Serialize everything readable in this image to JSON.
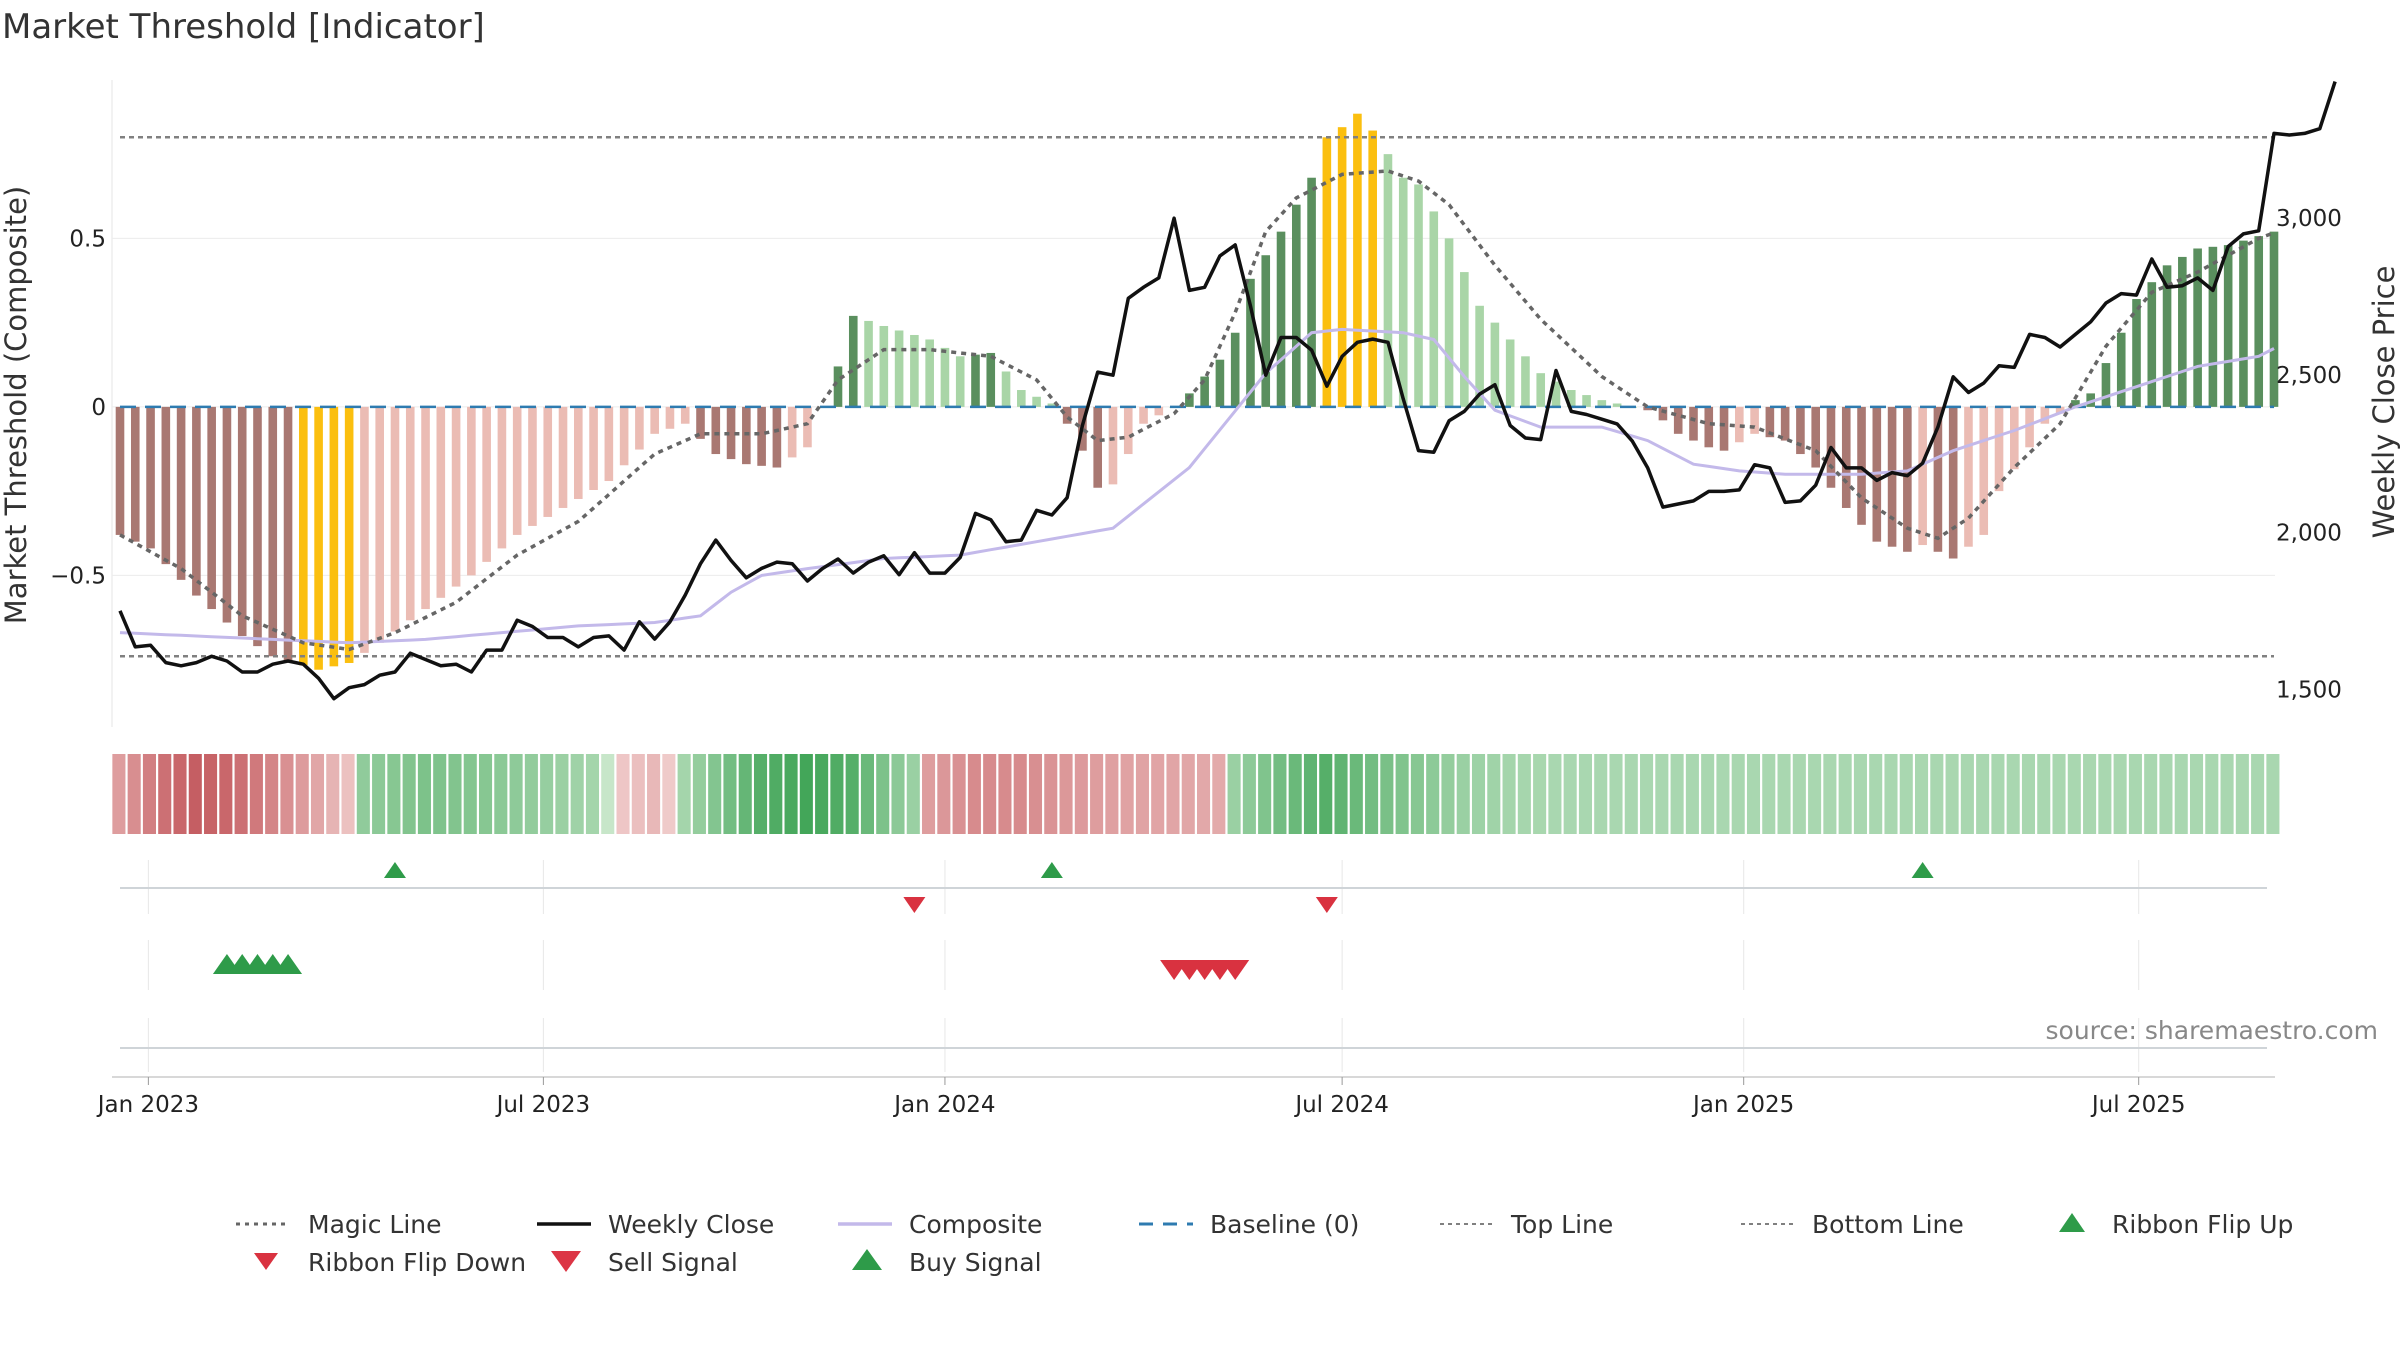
{
  "chart_data": {
    "type": "bar",
    "title": "Market Threshold [Indicator]",
    "ylabel": "Market Threshold (Composite)",
    "y2label": "Weekly Close Price",
    "source": "source: sharemaestro.com",
    "ylim": [
      -0.95,
      0.97
    ],
    "y2lim": [
      1380,
      3440
    ],
    "yticks": [
      {
        "value": 0.5,
        "label": "0.5"
      },
      {
        "value": 0,
        "label": "0"
      },
      {
        "value": -0.5,
        "label": "−0.5"
      }
    ],
    "y2ticks": [
      {
        "value": 3000,
        "label": "3,000"
      },
      {
        "value": 2500,
        "label": "2,500"
      },
      {
        "value": 2000,
        "label": "2,000"
      },
      {
        "value": 1500,
        "label": "1,500"
      }
    ],
    "start_date": "2022-12-19",
    "end_date": "2025-09-01",
    "xticks": [
      {
        "date": "2023-01-01",
        "label": "Jan 2023"
      },
      {
        "date": "2023-07-01",
        "label": "Jul 2023"
      },
      {
        "date": "2024-01-01",
        "label": "Jan 2024"
      },
      {
        "date": "2024-07-01",
        "label": "Jul 2024"
      },
      {
        "date": "2025-01-01",
        "label": "Jan 2025"
      },
      {
        "date": "2025-07-01",
        "label": "Jul 2025"
      }
    ],
    "top_line": 0.8,
    "bottom_line": -0.74,
    "composite_keyframes": [
      [
        0,
        -0.38
      ],
      [
        2,
        -0.42
      ],
      [
        5,
        -0.56
      ],
      [
        8,
        -0.68
      ],
      [
        10,
        -0.74
      ],
      [
        13,
        -0.78
      ],
      [
        15,
        -0.76
      ],
      [
        17,
        -0.7
      ],
      [
        20,
        -0.6
      ],
      [
        23,
        -0.5
      ],
      [
        26,
        -0.38
      ],
      [
        29,
        -0.3
      ],
      [
        32,
        -0.22
      ],
      [
        35,
        -0.08
      ],
      [
        37,
        -0.05
      ],
      [
        39,
        -0.14
      ],
      [
        41,
        -0.17
      ],
      [
        43,
        -0.18
      ],
      [
        45,
        -0.12
      ],
      [
        47,
        0.12
      ],
      [
        48,
        0.27
      ],
      [
        50,
        0.24
      ],
      [
        53,
        0.2
      ],
      [
        55,
        0.15
      ],
      [
        57,
        0.16
      ],
      [
        59,
        0.05
      ],
      [
        61,
        0.01
      ],
      [
        62,
        -0.05
      ],
      [
        63,
        -0.13
      ],
      [
        64,
        -0.24
      ],
      [
        65,
        -0.23
      ],
      [
        67,
        -0.05
      ],
      [
        69,
        0.0
      ],
      [
        70,
        0.04
      ],
      [
        72,
        0.14
      ],
      [
        73,
        0.22
      ],
      [
        74,
        0.38
      ],
      [
        76,
        0.52
      ],
      [
        78,
        0.68
      ],
      [
        79,
        0.8
      ],
      [
        80,
        0.83
      ],
      [
        81,
        0.87
      ],
      [
        82,
        0.82
      ],
      [
        83,
        0.75
      ],
      [
        84,
        0.68
      ],
      [
        85,
        0.66
      ],
      [
        87,
        0.5
      ],
      [
        89,
        0.3
      ],
      [
        91,
        0.2
      ],
      [
        93,
        0.1
      ],
      [
        95,
        0.05
      ],
      [
        97,
        0.02
      ],
      [
        99,
        0.0
      ],
      [
        100,
        -0.01
      ],
      [
        101,
        -0.04
      ],
      [
        102,
        -0.08
      ],
      [
        104,
        -0.12
      ],
      [
        105,
        -0.13
      ],
      [
        107,
        -0.08
      ],
      [
        109,
        -0.1
      ],
      [
        111,
        -0.18
      ],
      [
        113,
        -0.3
      ],
      [
        115,
        -0.4
      ],
      [
        117,
        -0.43
      ],
      [
        118,
        -0.41
      ],
      [
        120,
        -0.45
      ],
      [
        122,
        -0.38
      ],
      [
        123,
        -0.25
      ],
      [
        125,
        -0.12
      ],
      [
        126,
        -0.05
      ],
      [
        127,
        -0.02
      ],
      [
        128,
        0.02
      ],
      [
        129,
        0.04
      ],
      [
        131,
        0.22
      ],
      [
        132,
        0.32
      ],
      [
        134,
        0.42
      ],
      [
        136,
        0.47
      ],
      [
        138,
        0.48
      ],
      [
        141,
        0.52
      ],
      [
        144,
        0.58
      ],
      [
        146,
        0.62
      ],
      [
        148,
        0.59
      ],
      [
        150,
        0.55
      ],
      [
        152,
        0.5
      ],
      [
        154,
        0.52
      ],
      [
        156,
        0.54
      ],
      [
        158,
        0.55
      ],
      [
        159,
        0.56
      ]
    ],
    "close_keyframes": [
      [
        0,
        1750
      ],
      [
        1,
        1635
      ],
      [
        2,
        1640
      ],
      [
        3,
        1585
      ],
      [
        4,
        1575
      ],
      [
        5,
        1585
      ],
      [
        6,
        1605
      ],
      [
        7,
        1590
      ],
      [
        8,
        1555
      ],
      [
        9,
        1555
      ],
      [
        10,
        1580
      ],
      [
        11,
        1590
      ],
      [
        12,
        1580
      ],
      [
        13,
        1535
      ],
      [
        14,
        1470
      ],
      [
        15,
        1505
      ],
      [
        16,
        1515
      ],
      [
        17,
        1545
      ],
      [
        18,
        1555
      ],
      [
        19,
        1615
      ],
      [
        20,
        1595
      ],
      [
        21,
        1575
      ],
      [
        22,
        1580
      ],
      [
        23,
        1555
      ],
      [
        24,
        1625
      ],
      [
        25,
        1625
      ],
      [
        26,
        1720
      ],
      [
        27,
        1700
      ],
      [
        28,
        1665
      ],
      [
        29,
        1665
      ],
      [
        30,
        1635
      ],
      [
        31,
        1665
      ],
      [
        32,
        1670
      ],
      [
        33,
        1625
      ],
      [
        34,
        1715
      ],
      [
        35,
        1660
      ],
      [
        36,
        1715
      ],
      [
        37,
        1800
      ],
      [
        38,
        1900
      ],
      [
        39,
        1975
      ],
      [
        40,
        1910
      ],
      [
        41,
        1855
      ],
      [
        42,
        1885
      ],
      [
        43,
        1905
      ],
      [
        44,
        1900
      ],
      [
        45,
        1845
      ],
      [
        46,
        1885
      ],
      [
        47,
        1915
      ],
      [
        48,
        1870
      ],
      [
        49,
        1905
      ],
      [
        50,
        1925
      ],
      [
        51,
        1865
      ],
      [
        52,
        1935
      ],
      [
        53,
        1870
      ],
      [
        54,
        1870
      ],
      [
        55,
        1920
      ],
      [
        56,
        2060
      ],
      [
        57,
        2040
      ],
      [
        58,
        1970
      ],
      [
        59,
        1975
      ],
      [
        60,
        2070
      ],
      [
        61,
        2055
      ],
      [
        62,
        2110
      ],
      [
        63,
        2340
      ],
      [
        64,
        2510
      ],
      [
        65,
        2500
      ],
      [
        66,
        2745
      ],
      [
        67,
        2780
      ],
      [
        68,
        2810
      ],
      [
        69,
        3000
      ],
      [
        70,
        2770
      ],
      [
        71,
        2780
      ],
      [
        72,
        2880
      ],
      [
        73,
        2915
      ],
      [
        74,
        2720
      ],
      [
        75,
        2500
      ],
      [
        76,
        2620
      ],
      [
        77,
        2620
      ],
      [
        78,
        2580
      ],
      [
        79,
        2465
      ],
      [
        80,
        2560
      ],
      [
        81,
        2605
      ],
      [
        82,
        2615
      ],
      [
        83,
        2605
      ],
      [
        84,
        2425
      ],
      [
        85,
        2260
      ],
      [
        86,
        2255
      ],
      [
        87,
        2355
      ],
      [
        88,
        2385
      ],
      [
        89,
        2440
      ],
      [
        90,
        2470
      ],
      [
        91,
        2340
      ],
      [
        92,
        2300
      ],
      [
        93,
        2295
      ],
      [
        94,
        2515
      ],
      [
        95,
        2385
      ],
      [
        96,
        2375
      ],
      [
        97,
        2360
      ],
      [
        98,
        2345
      ],
      [
        99,
        2290
      ],
      [
        100,
        2205
      ],
      [
        101,
        2080
      ],
      [
        102,
        2090
      ],
      [
        103,
        2100
      ],
      [
        104,
        2130
      ],
      [
        105,
        2130
      ],
      [
        106,
        2135
      ],
      [
        107,
        2215
      ],
      [
        108,
        2205
      ],
      [
        109,
        2095
      ],
      [
        110,
        2100
      ],
      [
        111,
        2150
      ],
      [
        112,
        2270
      ],
      [
        113,
        2205
      ],
      [
        114,
        2205
      ],
      [
        115,
        2165
      ],
      [
        116,
        2190
      ],
      [
        117,
        2180
      ],
      [
        118,
        2220
      ],
      [
        119,
        2335
      ],
      [
        120,
        2495
      ],
      [
        121,
        2445
      ],
      [
        122,
        2475
      ],
      [
        123,
        2530
      ],
      [
        124,
        2525
      ],
      [
        125,
        2630
      ],
      [
        126,
        2620
      ],
      [
        127,
        2590
      ],
      [
        128,
        2630
      ],
      [
        129,
        2670
      ],
      [
        130,
        2730
      ],
      [
        131,
        2760
      ],
      [
        132,
        2755
      ],
      [
        133,
        2870
      ],
      [
        134,
        2780
      ],
      [
        135,
        2785
      ],
      [
        136,
        2810
      ],
      [
        137,
        2770
      ],
      [
        138,
        2910
      ],
      [
        139,
        2950
      ],
      [
        140,
        2960
      ],
      [
        141,
        3270
      ],
      [
        142,
        3265
      ],
      [
        143,
        3270
      ],
      [
        144,
        3285
      ],
      [
        145,
        3435
      ]
    ],
    "composite_line_keyframes": [
      [
        0,
        -0.67
      ],
      [
        5,
        -0.68
      ],
      [
        10,
        -0.69
      ],
      [
        15,
        -0.7
      ],
      [
        20,
        -0.69
      ],
      [
        25,
        -0.67
      ],
      [
        30,
        -0.65
      ],
      [
        35,
        -0.64
      ],
      [
        38,
        -0.62
      ],
      [
        40,
        -0.55
      ],
      [
        42,
        -0.5
      ],
      [
        45,
        -0.48
      ],
      [
        50,
        -0.45
      ],
      [
        55,
        -0.44
      ],
      [
        60,
        -0.4
      ],
      [
        65,
        -0.36
      ],
      [
        70,
        -0.18
      ],
      [
        75,
        0.1
      ],
      [
        78,
        0.22
      ],
      [
        80,
        0.23
      ],
      [
        84,
        0.22
      ],
      [
        86,
        0.2
      ],
      [
        88,
        0.09
      ],
      [
        90,
        -0.01
      ],
      [
        93,
        -0.06
      ],
      [
        97,
        -0.06
      ],
      [
        100,
        -0.1
      ],
      [
        103,
        -0.17
      ],
      [
        106,
        -0.19
      ],
      [
        109,
        -0.2
      ],
      [
        112,
        -0.2
      ],
      [
        114,
        -0.2
      ],
      [
        117,
        -0.19
      ],
      [
        120,
        -0.13
      ],
      [
        124,
        -0.07
      ],
      [
        128,
        0.0
      ],
      [
        132,
        0.06
      ],
      [
        136,
        0.12
      ],
      [
        140,
        0.15
      ],
      [
        143,
        0.22
      ],
      [
        146,
        0.34
      ],
      [
        148,
        0.42
      ]
    ],
    "magic_keyframes": [
      [
        0,
        -0.38
      ],
      [
        4,
        -0.48
      ],
      [
        8,
        -0.62
      ],
      [
        12,
        -0.7
      ],
      [
        15,
        -0.72
      ],
      [
        18,
        -0.67
      ],
      [
        22,
        -0.58
      ],
      [
        26,
        -0.44
      ],
      [
        30,
        -0.34
      ],
      [
        35,
        -0.14
      ],
      [
        38,
        -0.08
      ],
      [
        42,
        -0.08
      ],
      [
        45,
        -0.05
      ],
      [
        47,
        0.08
      ],
      [
        50,
        0.17
      ],
      [
        53,
        0.17
      ],
      [
        57,
        0.15
      ],
      [
        60,
        0.08
      ],
      [
        62,
        -0.03
      ],
      [
        64,
        -0.1
      ],
      [
        66,
        -0.09
      ],
      [
        69,
        -0.02
      ],
      [
        71,
        0.08
      ],
      [
        73,
        0.28
      ],
      [
        75,
        0.52
      ],
      [
        77,
        0.62
      ],
      [
        80,
        0.69
      ],
      [
        83,
        0.7
      ],
      [
        85,
        0.67
      ],
      [
        87,
        0.6
      ],
      [
        90,
        0.42
      ],
      [
        93,
        0.26
      ],
      [
        97,
        0.09
      ],
      [
        100,
        0.0
      ],
      [
        104,
        -0.05
      ],
      [
        107,
        -0.06
      ],
      [
        111,
        -0.13
      ],
      [
        114,
        -0.27
      ],
      [
        117,
        -0.36
      ],
      [
        119,
        -0.39
      ],
      [
        121,
        -0.33
      ],
      [
        124,
        -0.18
      ],
      [
        127,
        -0.05
      ],
      [
        130,
        0.18
      ],
      [
        133,
        0.34
      ],
      [
        136,
        0.4
      ],
      [
        140,
        0.5
      ],
      [
        143,
        0.55
      ],
      [
        146,
        0.55
      ],
      [
        148,
        0.53
      ],
      [
        151,
        0.52
      ],
      [
        155,
        0.53
      ],
      [
        158,
        0.55
      ]
    ],
    "ribbon_keyframes": [
      [
        0,
        -0.35
      ],
      [
        3,
        -0.6
      ],
      [
        5,
        -0.7
      ],
      [
        7,
        -0.65
      ],
      [
        9,
        -0.55
      ],
      [
        11,
        -0.42
      ],
      [
        13,
        -0.3
      ],
      [
        15,
        -0.15
      ],
      [
        16,
        0.35
      ],
      [
        20,
        0.45
      ],
      [
        24,
        0.4
      ],
      [
        28,
        0.32
      ],
      [
        31,
        0.25
      ],
      [
        33,
        -0.12
      ],
      [
        35,
        -0.2
      ],
      [
        36,
        -0.1
      ],
      [
        37,
        0.25
      ],
      [
        40,
        0.5
      ],
      [
        42,
        0.65
      ],
      [
        45,
        0.75
      ],
      [
        48,
        0.65
      ],
      [
        50,
        0.45
      ],
      [
        52,
        0.3
      ],
      [
        53,
        -0.35
      ],
      [
        56,
        -0.45
      ],
      [
        59,
        -0.45
      ],
      [
        62,
        -0.38
      ],
      [
        66,
        -0.32
      ],
      [
        70,
        -0.3
      ],
      [
        72,
        -0.28
      ],
      [
        73,
        0.3
      ],
      [
        76,
        0.5
      ],
      [
        79,
        0.65
      ],
      [
        82,
        0.5
      ],
      [
        85,
        0.4
      ],
      [
        88,
        0.3
      ],
      [
        91,
        0.25
      ],
      [
        94,
        0.22
      ]
    ],
    "ribbon_flip_up": [
      18,
      61,
      118
    ],
    "ribbon_flip_down": [
      52,
      79
    ],
    "buy_signals": [
      7,
      8,
      9,
      10,
      11
    ],
    "sell_signals": [
      69,
      70,
      71,
      72,
      73
    ],
    "legend": {
      "magic_line": "Magic Line",
      "weekly_close": "Weekly Close",
      "composite": "Composite",
      "baseline": "Baseline (0)",
      "top_line": "Top Line",
      "bottom_line": "Bottom Line",
      "ribbon_flip_up": "Ribbon Flip Up",
      "ribbon_flip_down": "Ribbon Flip Down",
      "sell_signal": "Sell Signal",
      "buy_signal": "Buy Signal"
    },
    "colors": {
      "strong_positive": "#5a8f5e",
      "weak_positive": "#a9d5a7",
      "strong_negative": "#a97872",
      "weak_negative": "#ebbcb4",
      "extreme": "#fbbf0f",
      "close": "#111111",
      "composite": "#c3b9ea",
      "magic": "#666666",
      "baseline": "#2e7bb0",
      "threshold": "#808080",
      "buy": "#2e9b49",
      "sell": "#d93240"
    }
  }
}
